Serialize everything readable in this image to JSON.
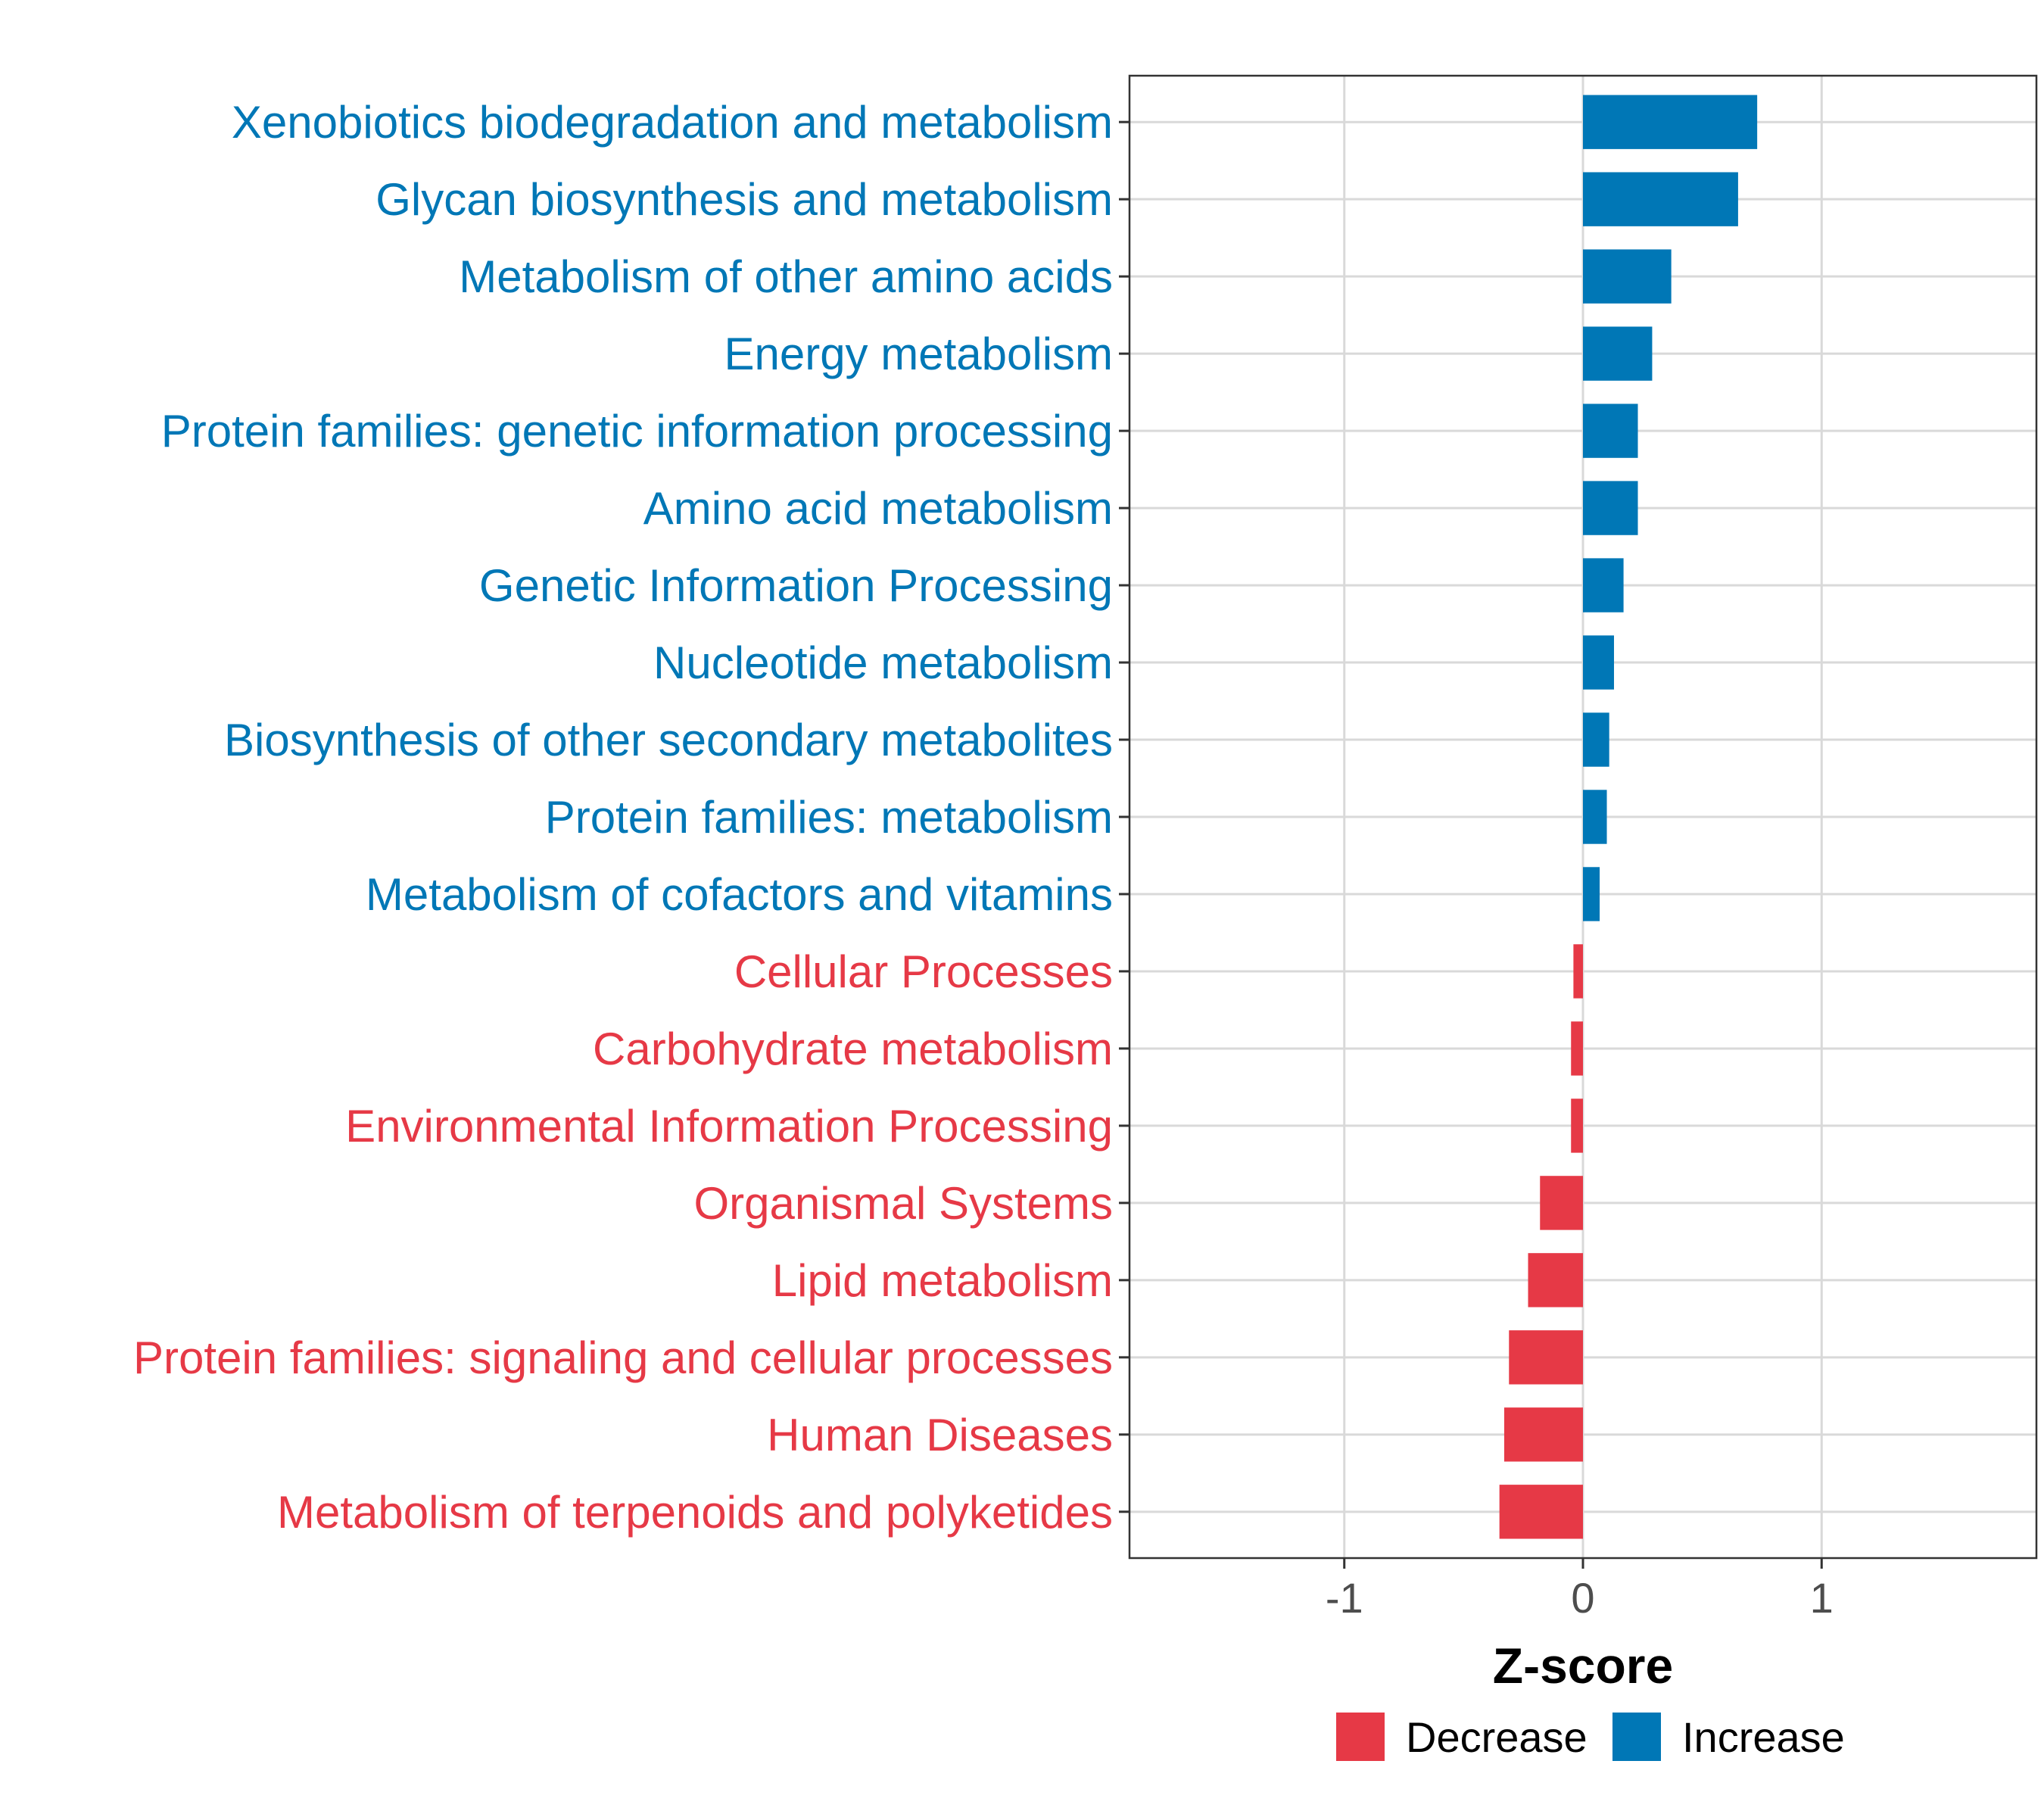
{
  "chart_data": {
    "type": "bar",
    "orientation": "horizontal",
    "title": "",
    "xlabel": "Z-score",
    "ylabel": "",
    "xlim": [
      -1.9,
      1.9
    ],
    "xticks": [
      -1,
      0,
      1
    ],
    "xtick_labels": [
      "-1",
      "0",
      "1"
    ],
    "grid": true,
    "legend_position": "bottom",
    "categories": [
      "Xenobiotics biodegradation and metabolism",
      "Glycan biosynthesis and metabolism",
      "Metabolism of other amino acids",
      "Energy metabolism",
      "Protein families: genetic information processing",
      "Amino acid metabolism",
      "Genetic Information Processing",
      "Nucleotide metabolism",
      "Biosynthesis of other secondary metabolites",
      "Protein families: metabolism",
      "Metabolism of cofactors and vitamins",
      "Cellular Processes",
      "Carbohydrate metabolism",
      "Environmental Information Processing",
      "Organismal Systems",
      "Lipid metabolism",
      "Protein families: signaling and cellular processes",
      "Human Diseases",
      "Metabolism of terpenoids and polyketides"
    ],
    "values": [
      0.73,
      0.65,
      0.37,
      0.29,
      0.23,
      0.23,
      0.17,
      0.13,
      0.11,
      0.1,
      0.07,
      -0.04,
      -0.05,
      -0.05,
      -0.18,
      -0.23,
      -0.31,
      -0.33,
      -0.35
    ],
    "groups": [
      "Increase",
      "Increase",
      "Increase",
      "Increase",
      "Increase",
      "Increase",
      "Increase",
      "Increase",
      "Increase",
      "Increase",
      "Increase",
      "Decrease",
      "Decrease",
      "Decrease",
      "Decrease",
      "Decrease",
      "Decrease",
      "Decrease",
      "Decrease"
    ],
    "legend": [
      {
        "name": "Decrease",
        "color": "#e63946"
      },
      {
        "name": "Increase",
        "color": "#0077b6"
      }
    ]
  },
  "colors": {
    "increase": "#0077b6",
    "decrease": "#e63946",
    "grid": "#d9d9d9",
    "panel_border": "#333333",
    "tick_text": "#4d4d4d"
  }
}
